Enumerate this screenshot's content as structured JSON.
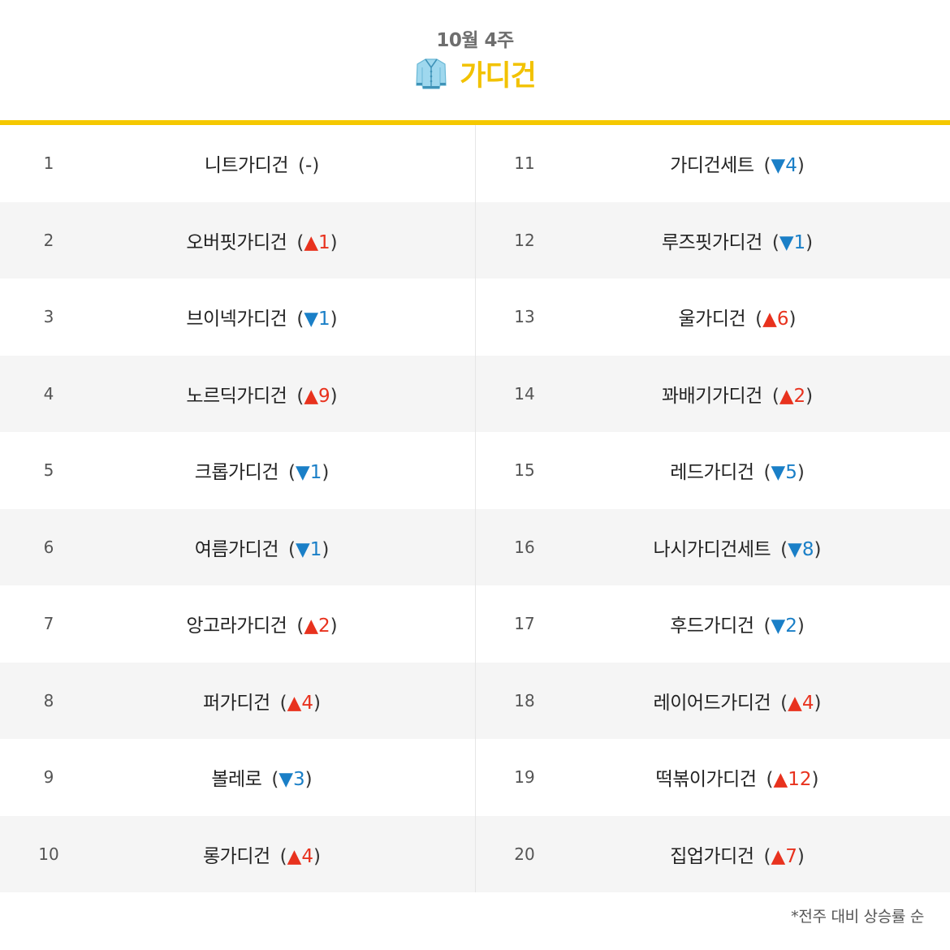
{
  "header": {
    "subtitle": "10월 4주",
    "title": "가디건",
    "icon": "cardigan-icon"
  },
  "colors": {
    "accent": "#f5c800",
    "up": "#e8321e",
    "down": "#1a7fc7"
  },
  "rankings_left": [
    {
      "rank": "1",
      "name": "니트가디건",
      "dir": "same",
      "symbol": "",
      "value": "-"
    },
    {
      "rank": "2",
      "name": "오버핏가디건",
      "dir": "up",
      "symbol": "▲",
      "value": "1"
    },
    {
      "rank": "3",
      "name": "브이넥가디건",
      "dir": "down",
      "symbol": "▼",
      "value": "1"
    },
    {
      "rank": "4",
      "name": "노르딕가디건",
      "dir": "up",
      "symbol": "▲",
      "value": "9"
    },
    {
      "rank": "5",
      "name": "크롭가디건",
      "dir": "down",
      "symbol": "▼",
      "value": "1"
    },
    {
      "rank": "6",
      "name": "여름가디건",
      "dir": "down",
      "symbol": "▼",
      "value": "1"
    },
    {
      "rank": "7",
      "name": "앙고라가디건",
      "dir": "up",
      "symbol": "▲",
      "value": "2"
    },
    {
      "rank": "8",
      "name": "퍼가디건",
      "dir": "up",
      "symbol": "▲",
      "value": "4"
    },
    {
      "rank": "9",
      "name": "볼레로",
      "dir": "down",
      "symbol": "▼",
      "value": "3"
    },
    {
      "rank": "10",
      "name": "롱가디건",
      "dir": "up",
      "symbol": "▲",
      "value": "4"
    }
  ],
  "rankings_right": [
    {
      "rank": "11",
      "name": "가디건세트",
      "dir": "down",
      "symbol": "▼",
      "value": "4"
    },
    {
      "rank": "12",
      "name": "루즈핏가디건",
      "dir": "down",
      "symbol": "▼",
      "value": "1"
    },
    {
      "rank": "13",
      "name": "울가디건",
      "dir": "up",
      "symbol": "▲",
      "value": "6"
    },
    {
      "rank": "14",
      "name": "꽈배기가디건",
      "dir": "up",
      "symbol": "▲",
      "value": "2"
    },
    {
      "rank": "15",
      "name": "레드가디건",
      "dir": "down",
      "symbol": "▼",
      "value": "5"
    },
    {
      "rank": "16",
      "name": "나시가디건세트",
      "dir": "down",
      "symbol": "▼",
      "value": "8"
    },
    {
      "rank": "17",
      "name": "후드가디건",
      "dir": "down",
      "symbol": "▼",
      "value": "2"
    },
    {
      "rank": "18",
      "name": "레이어드가디건",
      "dir": "up",
      "symbol": "▲",
      "value": "4"
    },
    {
      "rank": "19",
      "name": "떡볶이가디건",
      "dir": "up",
      "symbol": "▲",
      "value": "12"
    },
    {
      "rank": "20",
      "name": "집업가디건",
      "dir": "up",
      "symbol": "▲",
      "value": "7"
    }
  ],
  "footnote": "*전주 대비 상승률 순"
}
